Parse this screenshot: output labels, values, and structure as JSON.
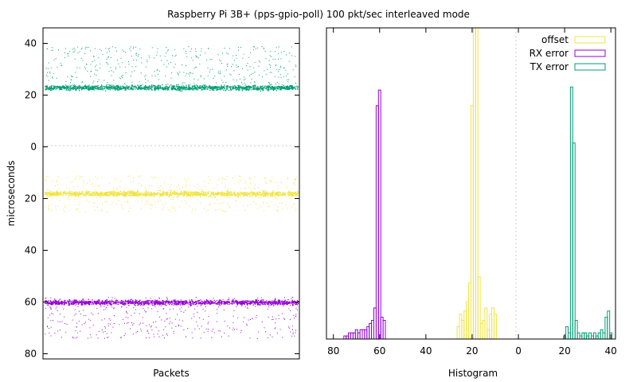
{
  "title": "Raspberry Pi 3B+ (pps-gpio-poll) 100 pkt/sec interleaved mode",
  "chart_data": [
    {
      "type": "scatter",
      "title": "",
      "xlabel": "Packets",
      "ylabel": "microseconds",
      "ylim": [
        -82,
        46
      ],
      "yticks": [
        40,
        20,
        0,
        -20,
        -40,
        -60,
        -80
      ],
      "ytick_labels": [
        "40",
        "20",
        "0",
        "20",
        "40",
        "60",
        "80"
      ],
      "grid": "dashed line at y=0",
      "series": [
        {
          "color": "#009e73",
          "bands": [
            {
              "center": 23,
              "spread": 1
            },
            {
              "scatter_range": [
                24,
                39
              ]
            }
          ]
        },
        {
          "color": "#f0e442",
          "bands": [
            {
              "center": -18,
              "spread": 1
            },
            {
              "scatter_range": [
                -25,
                -11
              ]
            }
          ]
        },
        {
          "color": "#9400d3",
          "bands": [
            {
              "center": -60,
              "spread": 1
            },
            {
              "scatter_range": [
                -74,
                -58
              ]
            }
          ]
        }
      ]
    },
    {
      "type": "bar",
      "title": "",
      "xlabel": "Histogram",
      "ylabel": "",
      "xlim": [
        83,
        -42
      ],
      "xticks": [
        80,
        60,
        40,
        20,
        0,
        -20,
        -40
      ],
      "xtick_labels": [
        "80",
        "60",
        "40",
        "20",
        "0",
        "20",
        "40"
      ],
      "grid": "dashed line at x=0",
      "legend": "top-right",
      "series": [
        {
          "name": "offset",
          "color": "#f0e442",
          "bins": [
            [
              26,
              0.04
            ],
            [
              25,
              0.08
            ],
            [
              24,
              0.06
            ],
            [
              23,
              0.09
            ],
            [
              22,
              0.12
            ],
            [
              21,
              0.18
            ],
            [
              20,
              0.75
            ],
            [
              19,
              1.0
            ],
            [
              18,
              1.0
            ],
            [
              17,
              0.2
            ],
            [
              16,
              0.05
            ],
            [
              15,
              0.06
            ],
            [
              14,
              0.1
            ],
            [
              13,
              0.03
            ],
            [
              12,
              0.08
            ],
            [
              11,
              0.1
            ],
            [
              10,
              0.08
            ]
          ]
        },
        {
          "name": "RX error",
          "color": "#9400d3",
          "bins": [
            [
              75,
              0.01
            ],
            [
              74,
              0.01
            ],
            [
              73,
              0.02
            ],
            [
              72,
              0.02
            ],
            [
              71,
              0.02
            ],
            [
              70,
              0.03
            ],
            [
              69,
              0.02
            ],
            [
              68,
              0.03
            ],
            [
              67,
              0.03
            ],
            [
              66,
              0.03
            ],
            [
              65,
              0.04
            ],
            [
              64,
              0.05
            ],
            [
              63,
              0.06
            ],
            [
              62,
              0.1
            ],
            [
              61,
              0.75
            ],
            [
              60,
              0.8
            ],
            [
              59,
              0.07
            ],
            [
              58,
              0.06
            ]
          ]
        },
        {
          "name": "TX error",
          "color": "#009e73",
          "bins": [
            [
              -20,
              0.01
            ],
            [
              -21,
              0.04
            ],
            [
              -22,
              0.02
            ],
            [
              -23,
              0.81
            ],
            [
              -24,
              0.63
            ],
            [
              -25,
              0.06
            ],
            [
              -26,
              0.02
            ],
            [
              -27,
              0.01
            ],
            [
              -28,
              0.02
            ],
            [
              -29,
              0.02
            ],
            [
              -30,
              0.01
            ],
            [
              -31,
              0.02
            ],
            [
              -32,
              0.01
            ],
            [
              -33,
              0.02
            ],
            [
              -34,
              0.01
            ],
            [
              -35,
              0.02
            ],
            [
              -36,
              0.03
            ],
            [
              -37,
              0.02
            ],
            [
              -38,
              0.07
            ],
            [
              -39,
              0.09
            ],
            [
              -40,
              0.02
            ]
          ]
        }
      ]
    }
  ]
}
